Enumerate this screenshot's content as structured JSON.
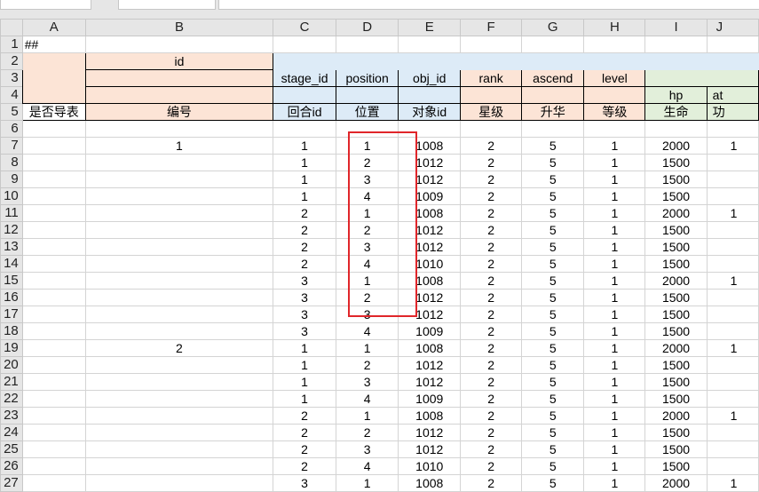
{
  "columns": [
    "A",
    "B",
    "C",
    "D",
    "E",
    "F",
    "G",
    "H",
    "I",
    "J"
  ],
  "row1": {
    "A": "##"
  },
  "header": {
    "id": "id",
    "fields": [
      "stage_id",
      "position",
      "obj_id",
      "rank",
      "ascend",
      "level"
    ],
    "hp": "hp",
    "atk_partial": "at",
    "labels": [
      "是否导表",
      "编号",
      "回合id",
      "位置",
      "对象id",
      "星级",
      "升华",
      "等级",
      "生命",
      "功"
    ]
  },
  "rows": [
    {
      "b": "1",
      "v": [
        "1",
        "1",
        "1008",
        "2",
        "5",
        "1",
        "2000"
      ],
      "j": "1"
    },
    {
      "b": "",
      "v": [
        "1",
        "2",
        "1012",
        "2",
        "5",
        "1",
        "1500"
      ],
      "j": ""
    },
    {
      "b": "",
      "v": [
        "1",
        "3",
        "1012",
        "2",
        "5",
        "1",
        "1500"
      ],
      "j": ""
    },
    {
      "b": "",
      "v": [
        "1",
        "4",
        "1009",
        "2",
        "5",
        "1",
        "1500"
      ],
      "j": ""
    },
    {
      "b": "",
      "v": [
        "2",
        "1",
        "1008",
        "2",
        "5",
        "1",
        "2000"
      ],
      "j": "1"
    },
    {
      "b": "",
      "v": [
        "2",
        "2",
        "1012",
        "2",
        "5",
        "1",
        "1500"
      ],
      "j": ""
    },
    {
      "b": "",
      "v": [
        "2",
        "3",
        "1012",
        "2",
        "5",
        "1",
        "1500"
      ],
      "j": ""
    },
    {
      "b": "",
      "v": [
        "2",
        "4",
        "1010",
        "2",
        "5",
        "1",
        "1500"
      ],
      "j": ""
    },
    {
      "b": "",
      "v": [
        "3",
        "1",
        "1008",
        "2",
        "5",
        "1",
        "2000"
      ],
      "j": "1"
    },
    {
      "b": "",
      "v": [
        "3",
        "2",
        "1012",
        "2",
        "5",
        "1",
        "1500"
      ],
      "j": ""
    },
    {
      "b": "",
      "v": [
        "3",
        "3",
        "1012",
        "2",
        "5",
        "1",
        "1500"
      ],
      "j": ""
    },
    {
      "b": "",
      "v": [
        "3",
        "4",
        "1009",
        "2",
        "5",
        "1",
        "1500"
      ],
      "j": ""
    },
    {
      "b": "2",
      "v": [
        "1",
        "1",
        "1008",
        "2",
        "5",
        "1",
        "2000"
      ],
      "j": "1"
    },
    {
      "b": "",
      "v": [
        "1",
        "2",
        "1012",
        "2",
        "5",
        "1",
        "1500"
      ],
      "j": ""
    },
    {
      "b": "",
      "v": [
        "1",
        "3",
        "1012",
        "2",
        "5",
        "1",
        "1500"
      ],
      "j": ""
    },
    {
      "b": "",
      "v": [
        "1",
        "4",
        "1009",
        "2",
        "5",
        "1",
        "1500"
      ],
      "j": ""
    },
    {
      "b": "",
      "v": [
        "2",
        "1",
        "1008",
        "2",
        "5",
        "1",
        "2000"
      ],
      "j": "1"
    },
    {
      "b": "",
      "v": [
        "2",
        "2",
        "1012",
        "2",
        "5",
        "1",
        "1500"
      ],
      "j": ""
    },
    {
      "b": "",
      "v": [
        "2",
        "3",
        "1012",
        "2",
        "5",
        "1",
        "1500"
      ],
      "j": ""
    },
    {
      "b": "",
      "v": [
        "2",
        "4",
        "1010",
        "2",
        "5",
        "1",
        "1500"
      ],
      "j": ""
    },
    {
      "b": "",
      "v": [
        "3",
        "1",
        "1008",
        "2",
        "5",
        "1",
        "2000"
      ],
      "j": "1"
    }
  ],
  "colors": {
    "peach": "#fce4d6",
    "blue": "#ddebf7",
    "green": "#e2efda",
    "highlight": "#e0262a"
  }
}
